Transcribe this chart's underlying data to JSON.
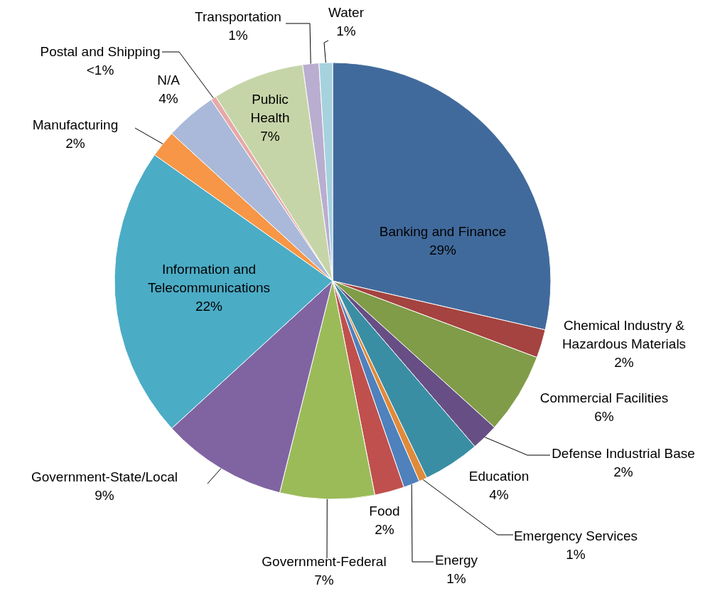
{
  "chart_data": {
    "type": "pie",
    "categories": [
      "Banking and Finance",
      "Chemical Industry & Hazardous Materials",
      "Commercial Facilities",
      "Defense Industrial Base",
      "Education",
      "Emergency Services",
      "Energy",
      "Food",
      "Government-Federal",
      "Government-State/Local",
      "Information and Telecommunications",
      "Manufacturing",
      "N/A",
      "Postal and Shipping",
      "Public Health",
      "Transportation",
      "Water"
    ],
    "values": [
      28.6,
      2.1,
      6.0,
      2.0,
      4.2,
      0.6,
      1.2,
      2.2,
      7.0,
      9.3,
      21.6,
      2.0,
      3.8,
      0.4,
      6.8,
      1.2,
      1.0
    ],
    "value_labels": [
      "29%",
      "2%",
      "6%",
      "2%",
      "4%",
      "1%",
      "1%",
      "2%",
      "7%",
      "9%",
      "22%",
      "2%",
      "4%",
      "<1%",
      "7%",
      "1%",
      "1%"
    ],
    "colors": [
      "#416a9c",
      "#a44340",
      "#809c48",
      "#674f85",
      "#3a8ea4",
      "#e08a3a",
      "#4f81bd",
      "#c0504d",
      "#9bbb59",
      "#8064a2",
      "#4bacc6",
      "#f79646",
      "#aab9d9",
      "#e6a9a7",
      "#c6d5a8",
      "#b9aed0",
      "#a6d2de"
    ]
  }
}
